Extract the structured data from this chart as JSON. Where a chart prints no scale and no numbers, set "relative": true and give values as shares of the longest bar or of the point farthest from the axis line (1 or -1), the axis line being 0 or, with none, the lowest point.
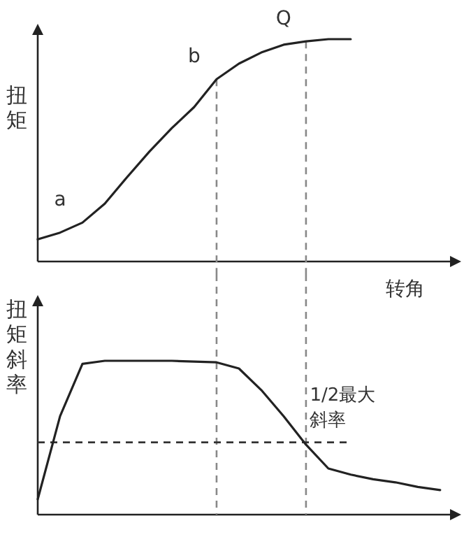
{
  "chart_data": [
    {
      "type": "line",
      "relative": true,
      "ylabel": "扭矩",
      "xlabel": "转角",
      "line_style": "solid",
      "categories": [
        null,
        null,
        null,
        null,
        null,
        null,
        null,
        null,
        null,
        null,
        null,
        null,
        null,
        null,
        null,
        null,
        null,
        null,
        null
      ],
      "series": [
        {
          "color": "#222222",
          "values": [
            0.1,
            0.13,
            0.175,
            0.26,
            0.38,
            0.495,
            0.6,
            0.695,
            0.82,
            0.89,
            0.94,
            0.975,
            0.99,
            1.0,
            1.0,
            null,
            null,
            null,
            null
          ]
        }
      ],
      "annotations": [
        "a",
        "b",
        "Q"
      ]
    },
    {
      "type": "line",
      "relative": true,
      "ylabel": "扭矩斜率",
      "line_style": "solid",
      "categories": [
        null,
        null,
        null,
        null,
        null,
        null,
        null,
        null,
        null,
        null,
        null,
        null,
        null,
        null,
        null,
        null,
        null,
        null,
        null
      ],
      "series": [
        {
          "color": "#222222",
          "values": [
            0.1,
            0.64,
            0.98,
            1.0,
            1.0,
            1.0,
            1.0,
            0.995,
            0.99,
            0.95,
            0.81,
            0.64,
            0.455,
            0.3,
            0.26,
            0.23,
            0.21,
            0.18,
            0.16
          ]
        }
      ],
      "ref_lines": [
        {
          "axis": "y",
          "value": 0.47,
          "color": "#333333",
          "line_style": "dashed",
          "label": "1/2最大斜率"
        }
      ]
    }
  ]
}
